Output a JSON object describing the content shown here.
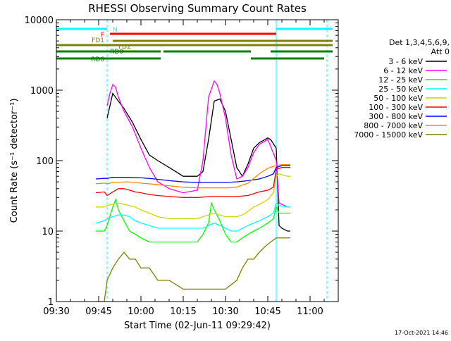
{
  "chart_data": {
    "type": "line",
    "title": "RHESSI Observing Summary Count Rates",
    "xlabel": "Start Time (02-Jun-11 09:29:42)",
    "ylabel": "Count Rate (s⁻¹ detector⁻¹)",
    "yscale": "log",
    "ylim": [
      1,
      10000
    ],
    "xlim_minutes": [
      0,
      100
    ],
    "x_tick_labels": [
      "09:30",
      "09:45",
      "10:00",
      "10:15",
      "10:30",
      "10:45",
      "11:00"
    ],
    "x_tick_minutes": [
      0,
      15,
      30,
      45,
      60,
      75,
      90
    ],
    "y_tick_labels": [
      "1",
      "10",
      "100",
      "1000",
      "10000"
    ],
    "y_tick_values": [
      1,
      10,
      100,
      1000,
      10000
    ],
    "legend_header": [
      "Det 1,3,4,5,6,9,",
      "Att 0"
    ],
    "footer_timestamp": "17-Oct-2021 14:46",
    "vertical_markers": [
      {
        "minute": 0,
        "color": "#00ffff",
        "style": "solid"
      },
      {
        "minute": 18,
        "color": "#00ffff",
        "style": "dashed"
      },
      {
        "minute": 78,
        "color": "#00ffff",
        "style": "solid"
      },
      {
        "minute": 96,
        "color": "#00ffff",
        "style": "dashed"
      }
    ],
    "flag_bars": [
      {
        "label": "N",
        "color": "#00ffff",
        "segments": [
          [
            0,
            18
          ],
          [
            78,
            98
          ]
        ]
      },
      {
        "label": "F",
        "color": "#ff0000",
        "segments": [
          [
            19,
            78
          ]
        ]
      },
      {
        "label": "FD1",
        "color": "#808000",
        "segments": [
          [
            20,
            98
          ]
        ]
      },
      {
        "label": "FD2",
        "color": "#808000",
        "segments": [
          [
            0,
            98
          ]
        ]
      },
      {
        "label": "RD0",
        "color": "#008000",
        "segments": [
          [
            0,
            37
          ],
          [
            38,
            69
          ],
          [
            76,
            98
          ]
        ]
      },
      {
        "label": "RD6",
        "color": "#008000",
        "segments": [
          [
            0,
            37
          ],
          [
            69,
            95
          ]
        ]
      }
    ],
    "series": [
      {
        "name": "3 - 6 keV",
        "color": "#000000",
        "x": [
          18,
          19,
          20,
          22,
          24,
          27,
          30,
          33,
          36,
          40,
          45,
          50,
          52,
          54,
          56,
          58,
          60,
          62,
          64,
          66,
          68,
          70,
          72,
          75,
          76,
          78,
          79,
          80,
          82,
          83
        ],
        "y": [
          400,
          600,
          900,
          700,
          550,
          350,
          200,
          120,
          100,
          80,
          60,
          60,
          70,
          200,
          700,
          750,
          500,
          200,
          80,
          60,
          90,
          150,
          180,
          210,
          200,
          150,
          12,
          11,
          10,
          10
        ]
      },
      {
        "name": "6 - 12 keV",
        "color": "#ff00ff",
        "x": [
          18,
          19,
          20,
          21,
          22,
          24,
          27,
          30,
          33,
          36,
          40,
          45,
          50,
          52,
          54,
          56,
          57,
          58,
          60,
          62,
          64,
          66,
          68,
          70,
          72,
          75,
          76,
          78,
          79,
          80,
          82,
          83
        ],
        "y": [
          600,
          900,
          1200,
          1100,
          800,
          500,
          300,
          150,
          80,
          50,
          40,
          35,
          38,
          100,
          800,
          1350,
          1200,
          900,
          400,
          120,
          55,
          60,
          80,
          130,
          170,
          200,
          160,
          100,
          25,
          24,
          22,
          22
        ]
      },
      {
        "name": "12 - 25 keV",
        "color": "#00ff00",
        "x": [
          14,
          17,
          18,
          20,
          21,
          22,
          24,
          26,
          28,
          30,
          33,
          36,
          40,
          45,
          50,
          52,
          54,
          55,
          56,
          58,
          60,
          62,
          64,
          66,
          68,
          70,
          72,
          75,
          77,
          78,
          79,
          82,
          83
        ],
        "y": [
          10,
          10,
          12,
          22,
          28,
          20,
          14,
          10,
          9,
          8,
          7,
          7,
          7,
          7,
          7,
          9,
          13,
          25,
          20,
          14,
          9,
          7,
          7,
          8,
          9,
          10,
          11,
          13,
          15,
          22,
          18,
          18,
          18
        ]
      },
      {
        "name": "25 - 50 keV",
        "color": "#00ffff",
        "x": [
          14,
          17,
          18,
          20,
          22,
          24,
          26,
          28,
          30,
          33,
          36,
          40,
          45,
          50,
          52,
          54,
          56,
          58,
          60,
          62,
          64,
          66,
          68,
          70,
          72,
          75,
          77,
          78,
          79,
          82,
          83
        ],
        "y": [
          13,
          14,
          15,
          16,
          17,
          17,
          16,
          14,
          13,
          12,
          11,
          11,
          11,
          11,
          11,
          12,
          13,
          12,
          11,
          10,
          10,
          11,
          12,
          13,
          14,
          16,
          18,
          25,
          23,
          22,
          22
        ]
      },
      {
        "name": "50 - 100 keV",
        "color": "#d4d400",
        "x": [
          14,
          17,
          18,
          20,
          22,
          24,
          26,
          28,
          30,
          33,
          36,
          40,
          45,
          50,
          52,
          54,
          56,
          58,
          60,
          62,
          64,
          66,
          68,
          70,
          72,
          75,
          77,
          78,
          79,
          82,
          83
        ],
        "y": [
          22,
          22,
          23,
          24,
          25,
          24,
          23,
          22,
          20,
          18,
          16,
          15,
          15,
          15,
          16,
          17,
          18,
          17,
          16,
          16,
          16,
          17,
          19,
          22,
          24,
          28,
          35,
          60,
          65,
          60,
          60
        ]
      },
      {
        "name": "100 - 300 keV",
        "color": "#ff0000",
        "x": [
          14,
          17,
          18,
          20,
          22,
          24,
          26,
          28,
          30,
          33,
          36,
          40,
          45,
          50,
          55,
          60,
          64,
          68,
          70,
          72,
          75,
          77,
          78,
          80,
          83
        ],
        "y": [
          35,
          36,
          32,
          36,
          40,
          40,
          38,
          36,
          35,
          33,
          32,
          31,
          30,
          30,
          31,
          31,
          31,
          32,
          34,
          36,
          38,
          42,
          75,
          80,
          80
        ]
      },
      {
        "name": "300 - 800 keV",
        "color": "#0000ff",
        "x": [
          14,
          17,
          18,
          20,
          25,
          30,
          35,
          40,
          45,
          50,
          55,
          60,
          64,
          68,
          72,
          75,
          77,
          78,
          80,
          83
        ],
        "y": [
          55,
          56,
          56,
          58,
          58,
          57,
          55,
          52,
          50,
          49,
          49,
          49,
          50,
          52,
          55,
          60,
          65,
          80,
          85,
          85
        ]
      },
      {
        "name": "800 - 7000 keV",
        "color": "#ff8c00",
        "x": [
          14,
          17,
          18,
          20,
          25,
          30,
          35,
          40,
          45,
          50,
          55,
          60,
          64,
          68,
          72,
          75,
          77,
          78,
          80,
          83
        ],
        "y": [
          47,
          48,
          47,
          49,
          50,
          48,
          46,
          44,
          42,
          41,
          41,
          41,
          42,
          48,
          65,
          78,
          83,
          85,
          88,
          88
        ]
      },
      {
        "name": "7000 - 15000 keV",
        "color": "#808000",
        "x": [
          14,
          17,
          18,
          20,
          22,
          24,
          26,
          28,
          30,
          33,
          36,
          40,
          45,
          50,
          55,
          60,
          64,
          66,
          68,
          70,
          72,
          74,
          76,
          78,
          80,
          83
        ],
        "y": [
          1,
          1,
          2,
          3,
          4,
          5,
          4,
          4,
          3,
          3,
          2,
          2,
          1.5,
          1.5,
          1.5,
          1.5,
          2,
          3,
          4,
          4,
          5,
          6,
          7,
          8,
          8,
          8
        ]
      }
    ]
  }
}
